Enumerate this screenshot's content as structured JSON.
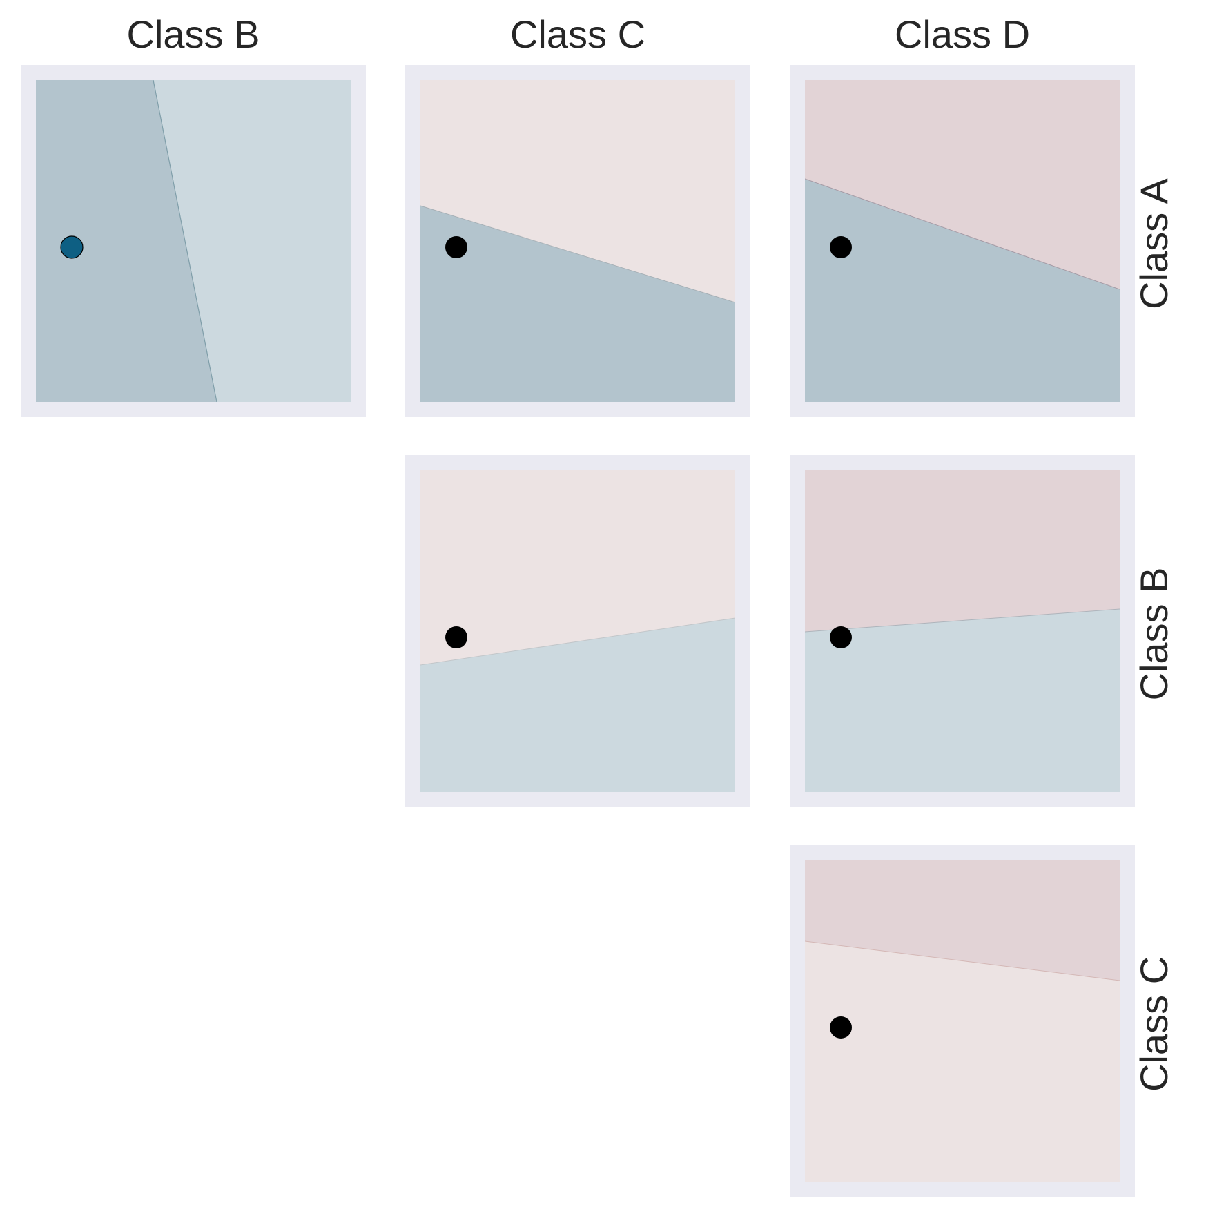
{
  "column_headers": [
    "Class B",
    "Class C",
    "Class D"
  ],
  "row_headers": [
    "Class A",
    "Class B",
    "Class C"
  ],
  "colors": {
    "panel_frame": "#eaeaf2",
    "region_blue_dark": "#b3c4cd",
    "region_blue_light": "#ccd9df",
    "region_pink_light": "#ece3e3",
    "region_rose": "#e2d3d6",
    "point_highlight": "#0e5f83",
    "point_default": "#000000"
  },
  "panels": [
    {
      "row": "Class A",
      "column": "Class B",
      "regions": [
        "region_blue_dark",
        "region_blue_light"
      ],
      "point_color": "point_highlight"
    },
    {
      "row": "Class A",
      "column": "Class C",
      "regions": [
        "region_pink_light",
        "region_blue_dark"
      ],
      "point_color": "point_default"
    },
    {
      "row": "Class A",
      "column": "Class D",
      "regions": [
        "region_rose",
        "region_blue_dark"
      ],
      "point_color": "point_default"
    },
    {
      "row": "Class B",
      "column": "Class C",
      "regions": [
        "region_pink_light",
        "region_blue_light"
      ],
      "point_color": "point_default"
    },
    {
      "row": "Class B",
      "column": "Class D",
      "regions": [
        "region_rose",
        "region_blue_light"
      ],
      "point_color": "point_default"
    },
    {
      "row": "Class C",
      "column": "Class D",
      "regions": [
        "region_rose",
        "region_pink_light"
      ],
      "point_color": "point_default"
    }
  ]
}
